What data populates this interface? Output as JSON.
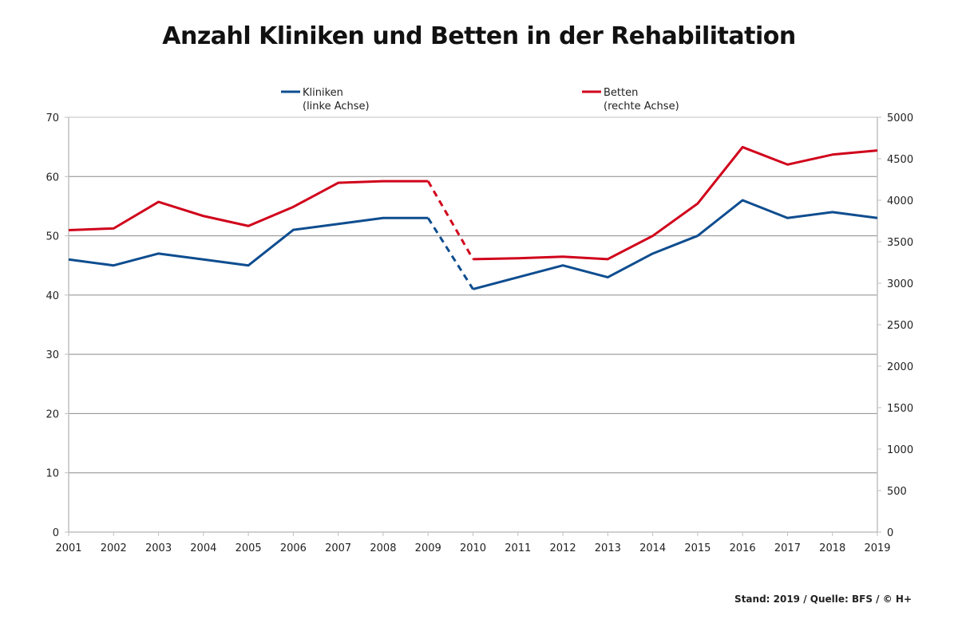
{
  "title": "Anzahl Kliniken und Betten in der Rehabilitation",
  "source": "Stand: 2019 / Quelle: BFS / © H+",
  "colors": {
    "kliniken": "#0e4d8f",
    "betten": "#d0021b",
    "grid": "#8a8a8a",
    "axis": "#c0c0c0"
  },
  "chart_data": {
    "type": "line",
    "title": "Anzahl Kliniken und Betten in der Rehabilitation",
    "categories": [
      "2001",
      "2002",
      "2003",
      "2004",
      "2005",
      "2006",
      "2007",
      "2008",
      "2009",
      "2010",
      "2011",
      "2012",
      "2013",
      "2014",
      "2015",
      "2016",
      "2017",
      "2018",
      "2019"
    ],
    "series": [
      {
        "name": "Kliniken",
        "sub": "(linke Achse)",
        "axis": "left",
        "color": "#0e4d8f",
        "values": [
          46,
          45,
          47,
          46,
          45,
          51,
          52,
          53,
          53,
          41,
          43,
          45,
          43,
          47,
          50,
          56,
          53,
          54,
          53
        ]
      },
      {
        "name": "Betten",
        "sub": "(rechte Achse)",
        "axis": "right",
        "color": "#d0021b",
        "values": [
          3640,
          3660,
          3980,
          3810,
          3690,
          3920,
          4210,
          4230,
          4230,
          3290,
          3300,
          3320,
          3290,
          3570,
          3960,
          4640,
          4430,
          4550,
          4600
        ]
      }
    ],
    "dashed_segment": [
      "2009",
      "2010"
    ],
    "y_left": {
      "lim": [
        0,
        70
      ],
      "ticks": [
        0,
        10,
        20,
        30,
        40,
        50,
        60,
        70
      ]
    },
    "y_right": {
      "lim": [
        0,
        5000
      ],
      "ticks": [
        0,
        500,
        1000,
        1500,
        2000,
        2500,
        3000,
        3500,
        4000,
        4500,
        5000
      ]
    },
    "grid": true,
    "legend": "top"
  }
}
